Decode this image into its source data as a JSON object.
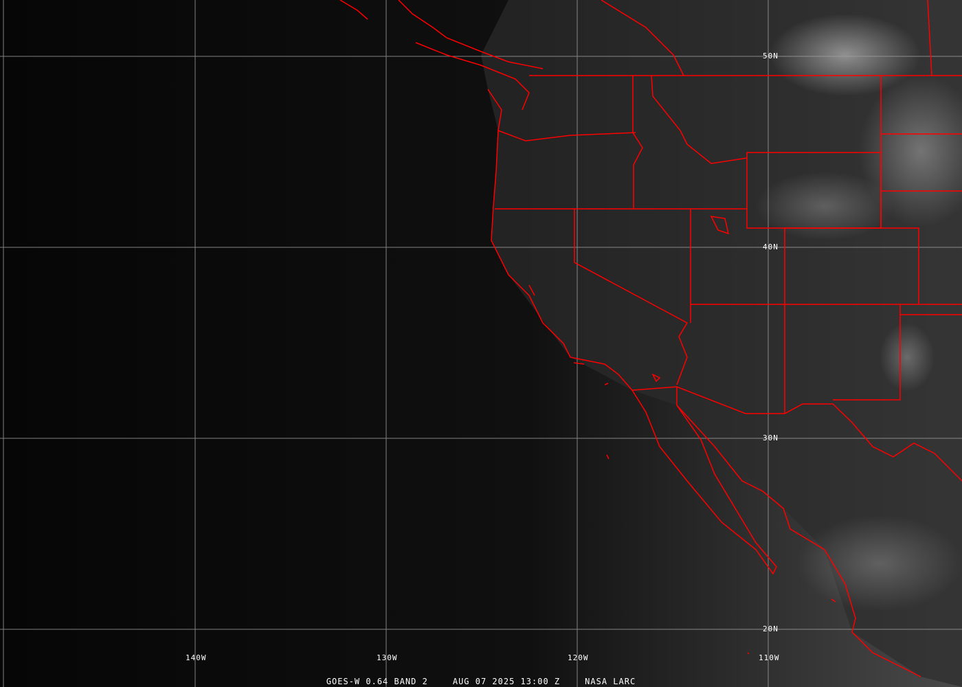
{
  "map": {
    "caption": {
      "satellite": "GOES-W 0.64 BAND 2",
      "datetime": "AUG 07 2025 13:00 Z",
      "source": "NASA LARC"
    },
    "lat_labels": [
      "50N",
      "40N",
      "30N",
      "20N"
    ],
    "lon_labels": [
      "140W",
      "130W",
      "120W",
      "110W"
    ],
    "colors": {
      "borders": "#ff0000",
      "grid": "#a0a0a0",
      "ocean": "#0a0a0a",
      "land": "#3a3a3a"
    }
  }
}
